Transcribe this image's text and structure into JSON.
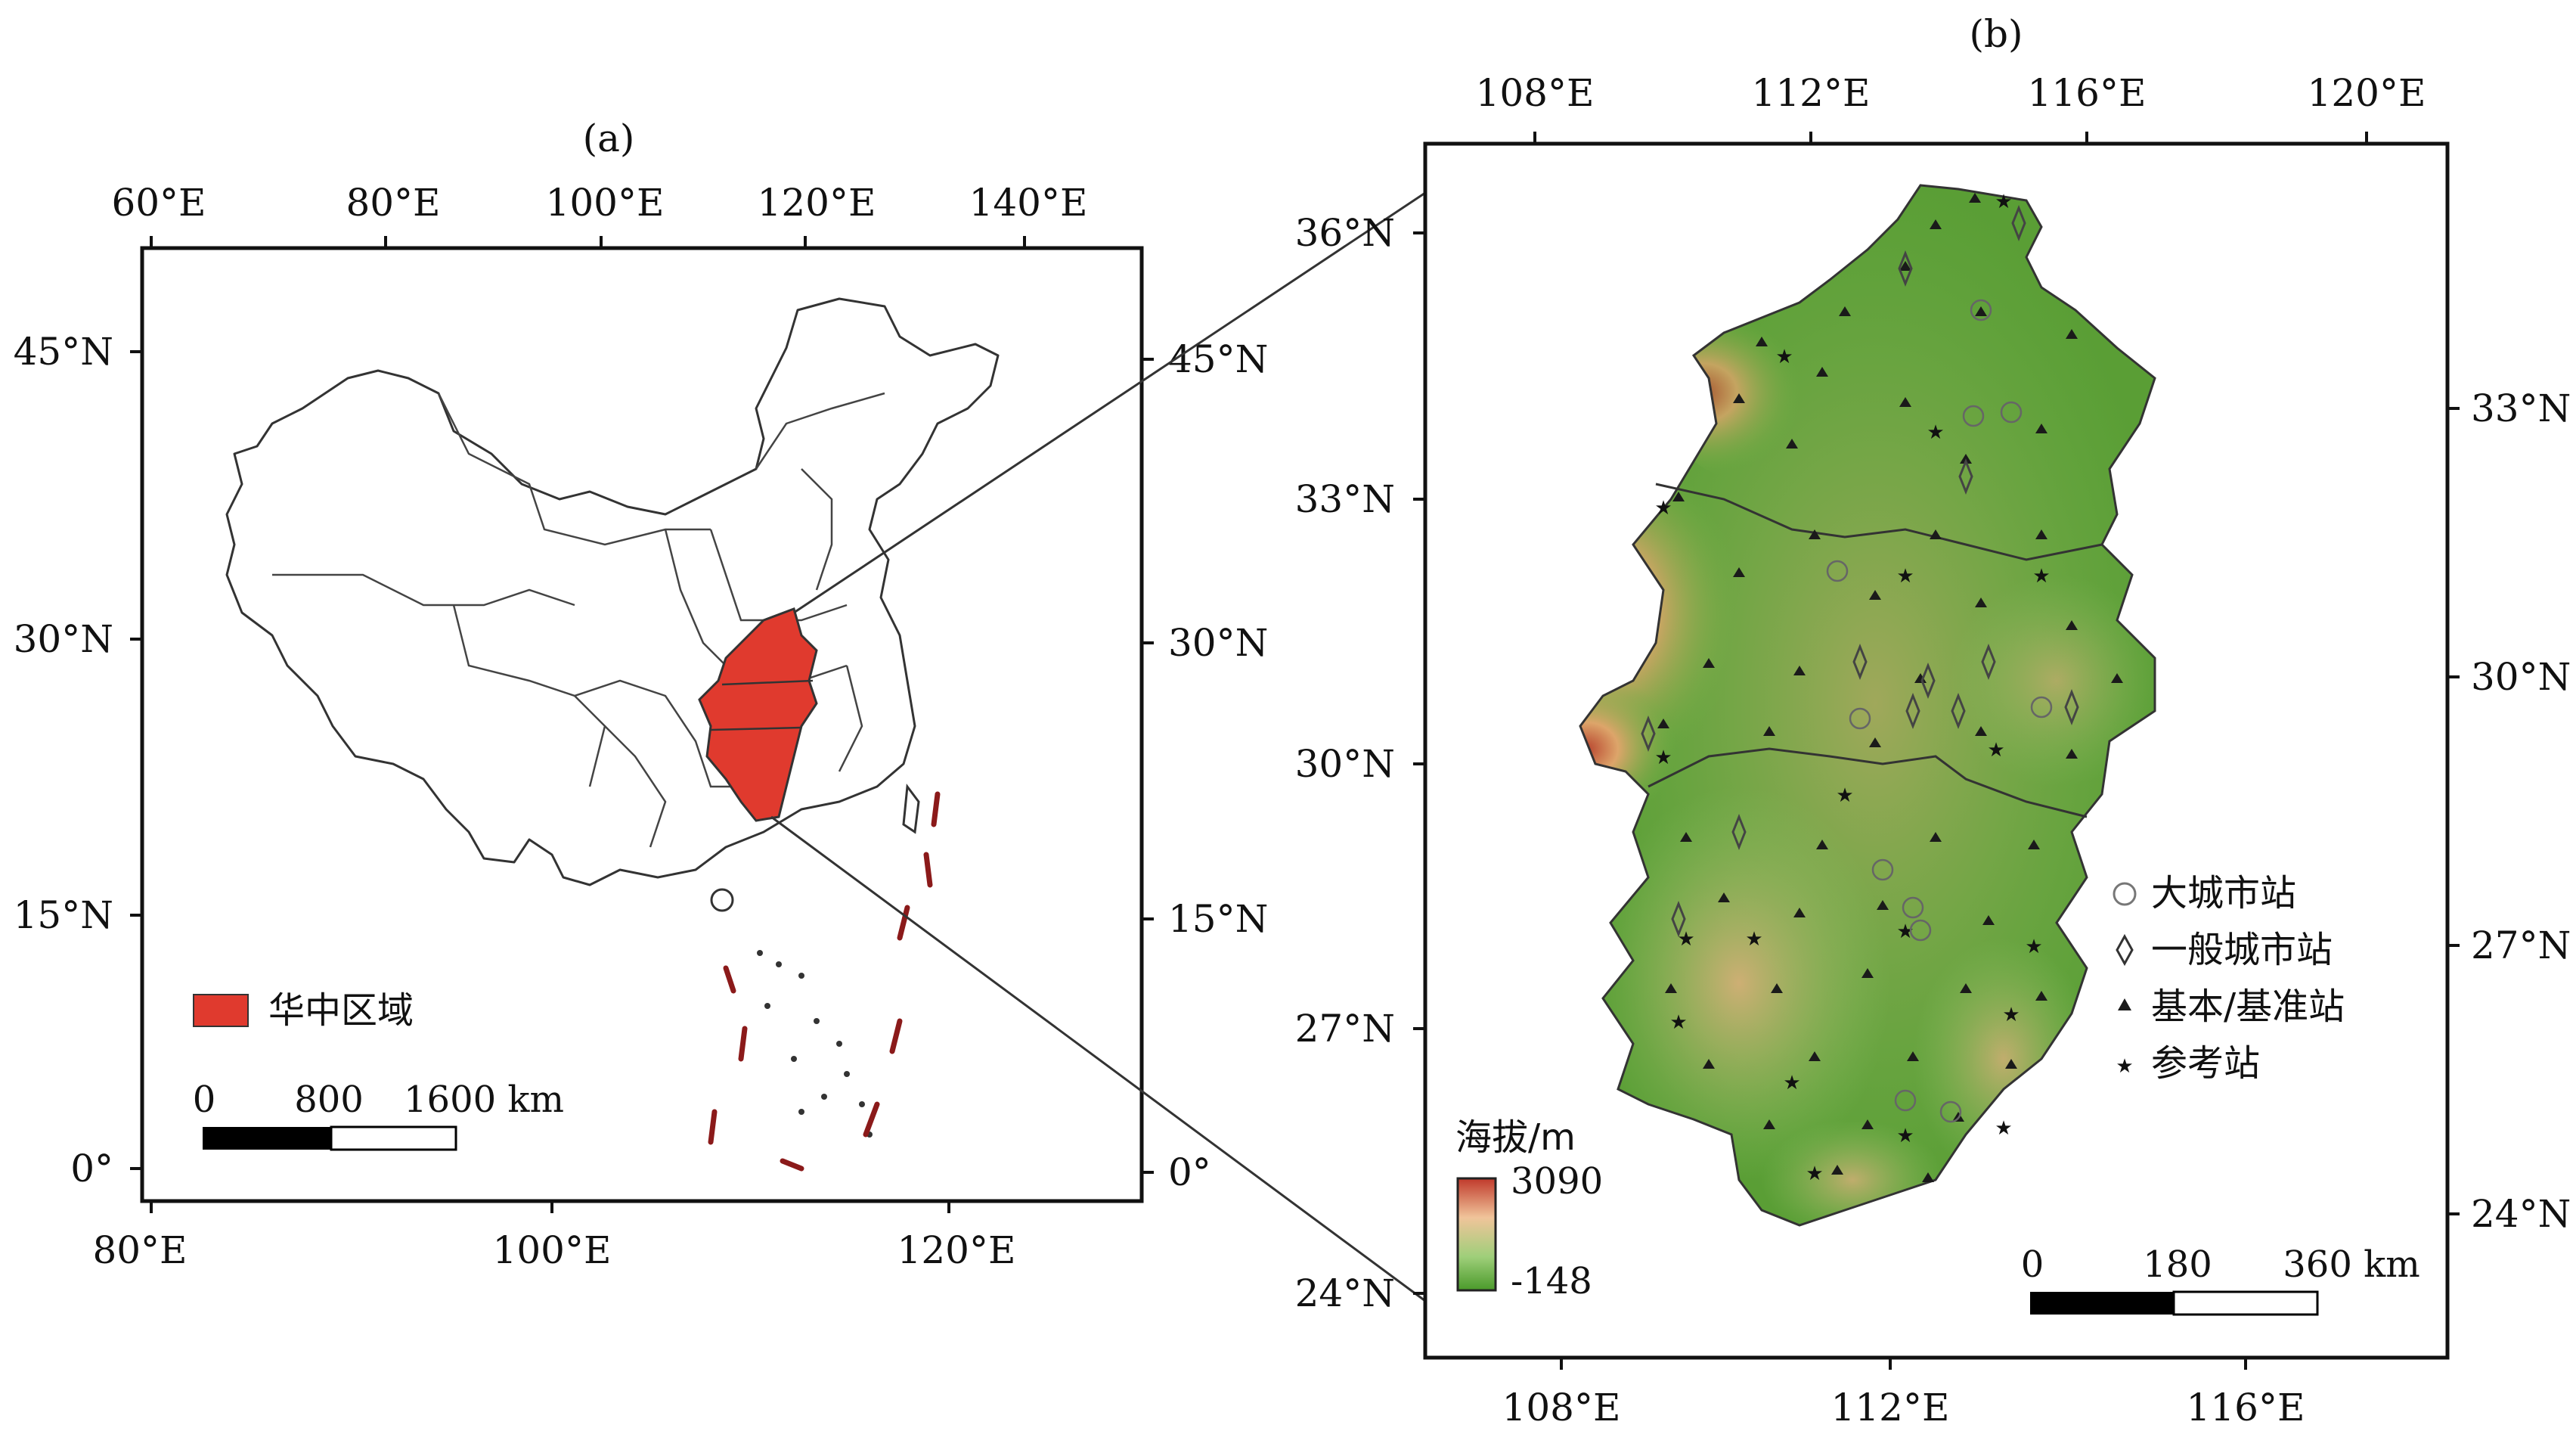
{
  "panel_a": {
    "label": "(a)",
    "top_ticks": [
      "60°E",
      "80°E",
      "100°E",
      "120°E",
      "140°E"
    ],
    "bottom_ticks": [
      "80°E",
      "100°E",
      "120°E"
    ],
    "left_ticks": [
      "45°N",
      "30°N",
      "15°N",
      "0°"
    ],
    "right_ticks": [
      "45°N",
      "30°N",
      "15°N",
      "0°"
    ],
    "legend": {
      "label": "华中区域",
      "color": "#e03a2e"
    },
    "scale_bar": {
      "labels": [
        "0",
        "800",
        "1600 km"
      ]
    }
  },
  "panel_b": {
    "label": "(b)",
    "top_ticks": [
      "108°E",
      "112°E",
      "116°E",
      "120°E"
    ],
    "bottom_ticks": [
      "108°E",
      "112°E",
      "116°E"
    ],
    "left_ticks": [
      "36°N",
      "33°N",
      "30°N",
      "27°N",
      "24°N"
    ],
    "right_ticks": [
      "33°N",
      "30°N",
      "27°N",
      "24°N"
    ],
    "elevation_legend": {
      "title": "海拔/m",
      "max": "3090",
      "min": "-148",
      "colors": [
        "#c0392b",
        "#f0c49a",
        "#9fcf7a",
        "#4a9a2a"
      ]
    },
    "station_legend": [
      {
        "label": "大城市站",
        "symbol": "circle"
      },
      {
        "label": "一般城市站",
        "symbol": "diamond"
      },
      {
        "label": "基本/基准站",
        "symbol": "triangle"
      },
      {
        "label": "参考站",
        "symbol": "star"
      }
    ],
    "scale_bar": {
      "labels": [
        "0",
        "180",
        "360 km"
      ]
    }
  }
}
